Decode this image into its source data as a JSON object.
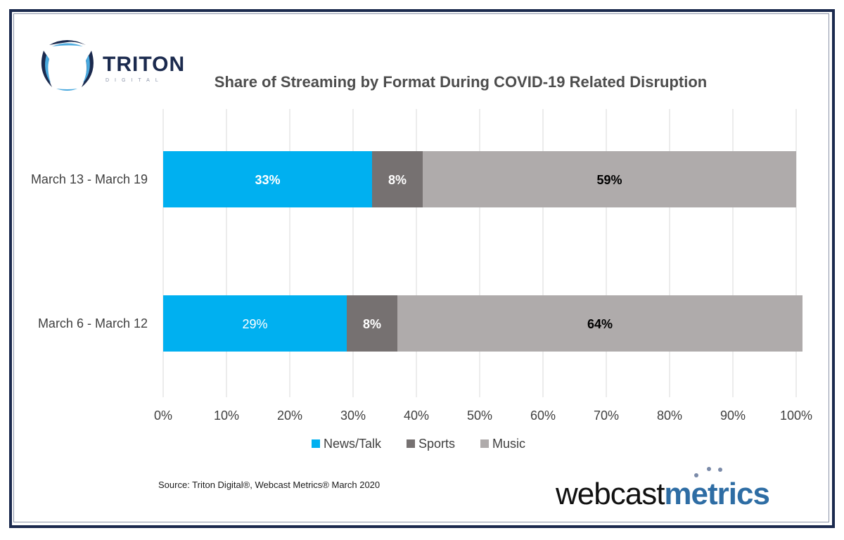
{
  "logo": {
    "brand": "TRITON",
    "sub": "DIGITAL"
  },
  "footer_logo": {
    "part1": "webcast",
    "part2": "metrics"
  },
  "source": "Source: Triton Digital®, Webcast Metrics® March 2020",
  "colors": {
    "news": "#00b0f0",
    "sports": "#767171",
    "music": "#afabab",
    "frame": "#1b2a4e"
  },
  "chart_data": {
    "type": "bar",
    "orientation": "horizontal",
    "stacked": true,
    "title": "Share of Streaming by Format During COVID-19 Related Disruption",
    "categories": [
      "March 13 - March 19",
      "March 6 - March 12"
    ],
    "series": [
      {
        "name": "News/Talk",
        "values": [
          33,
          29
        ],
        "labels": [
          "33%",
          "29%"
        ],
        "label_color": "#ffffff",
        "color": "#00b0f0"
      },
      {
        "name": "Sports",
        "values": [
          8,
          8
        ],
        "labels": [
          "8%",
          "8%"
        ],
        "label_color": "#ffffff",
        "color": "#767171"
      },
      {
        "name": "Music",
        "values": [
          59,
          64
        ],
        "labels": [
          "59%",
          "64%"
        ],
        "label_color": "#000000",
        "color": "#afabab"
      }
    ],
    "xlim": [
      0,
      100
    ],
    "xticks": [
      "0%",
      "10%",
      "20%",
      "30%",
      "40%",
      "50%",
      "60%",
      "70%",
      "80%",
      "90%",
      "100%"
    ],
    "grid": "vertical",
    "legend_position": "bottom"
  }
}
